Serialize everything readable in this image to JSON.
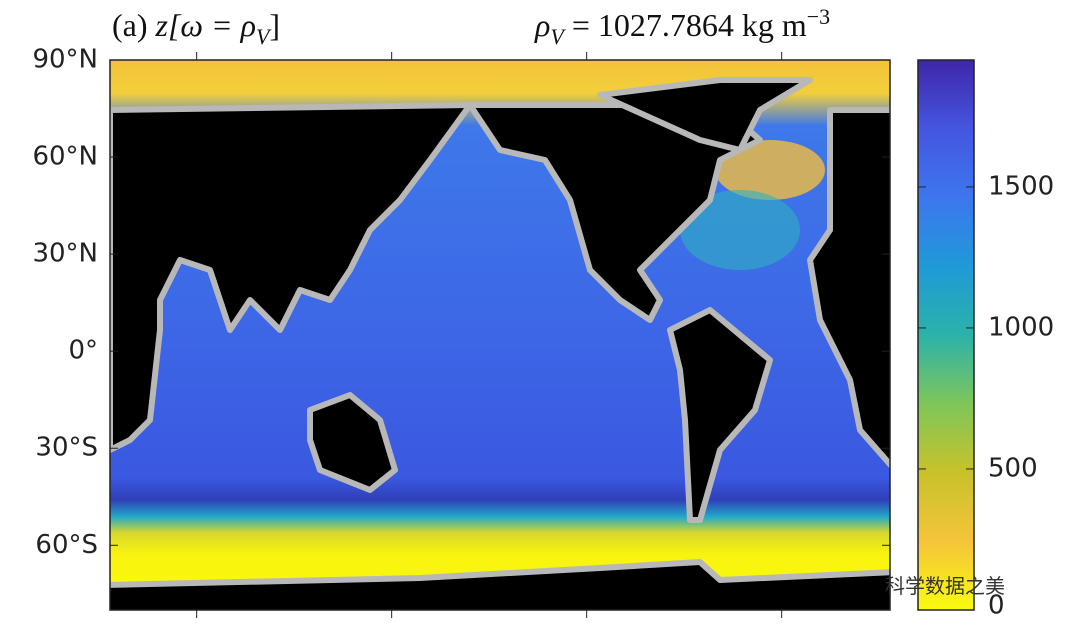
{
  "panel": {
    "title": {
      "label": "(a)",
      "expr": "z[ω = ρ",
      "sub": "V",
      "close": "]"
    },
    "density": {
      "symbol": "ρ",
      "sub": "V",
      "text": " = 1027.7864 kg m",
      "sup": "−3"
    },
    "watermark": "科学数据之美"
  },
  "chart_data": {
    "type": "map",
    "ylim": [
      -80,
      90
    ],
    "yticks": [
      {
        "value": 90,
        "label": "90°N"
      },
      {
        "value": 60,
        "label": "60°N"
      },
      {
        "value": 30,
        "label": "30°N"
      },
      {
        "value": 0,
        "label": "0°"
      },
      {
        "value": -30,
        "label": "30°S"
      },
      {
        "value": -60,
        "label": "60°S"
      }
    ],
    "xlim": [
      20,
      380
    ],
    "xticks": [
      60,
      150,
      240,
      330
    ],
    "colorbar": {
      "lim": [
        0,
        1950
      ],
      "ticks": [
        0,
        500,
        1000,
        1500
      ],
      "colormap": [
        "#f9fb0e",
        "#f5c43a",
        "#c8c22a",
        "#7fc65a",
        "#2bb2a9",
        "#1f9ad8",
        "#3d76ee",
        "#4456e0",
        "#3e26a8"
      ]
    }
  }
}
